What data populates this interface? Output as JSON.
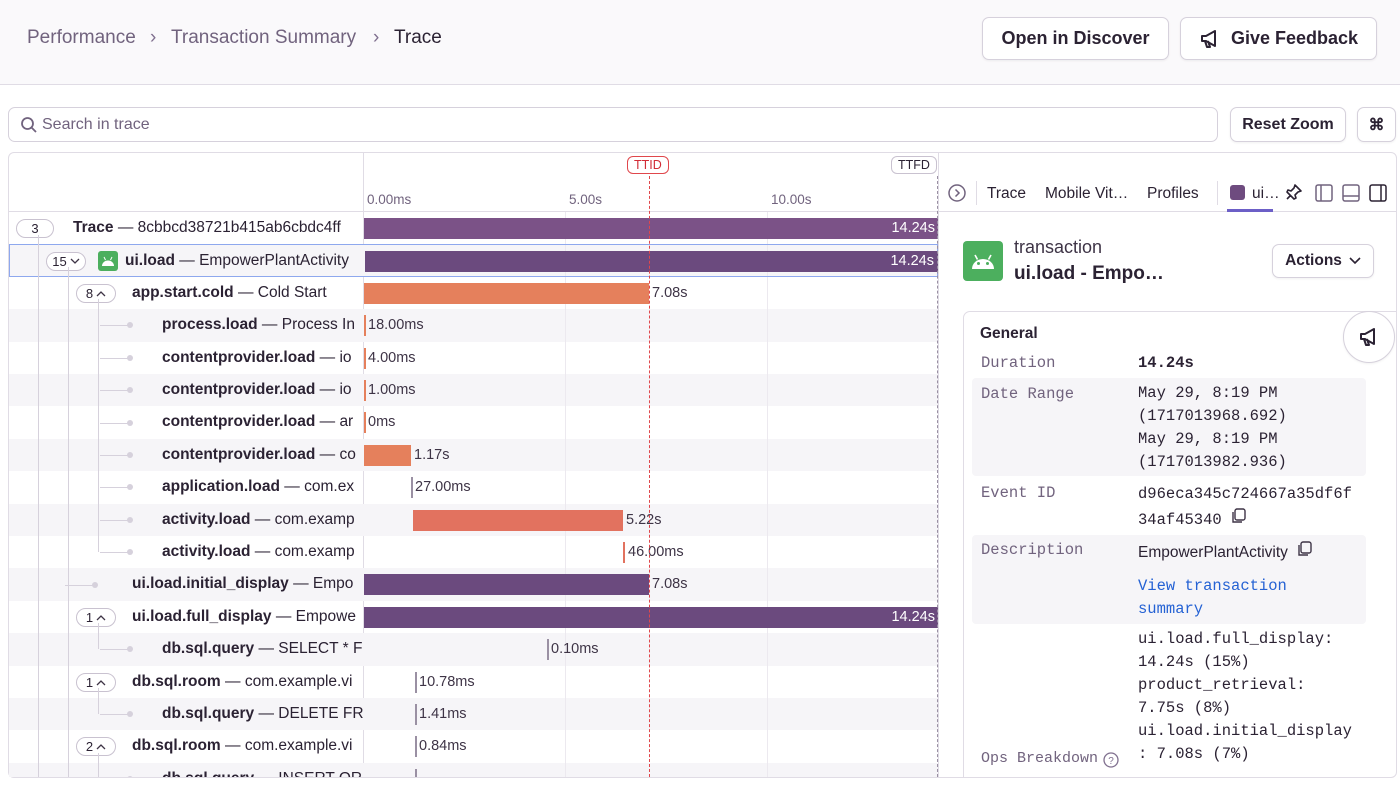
{
  "breadcrumbs": [
    "Performance",
    "Transaction Summary",
    "Trace"
  ],
  "header_buttons": {
    "open_discover": "Open in Discover",
    "feedback": "Give Feedback"
  },
  "toolbar": {
    "search_placeholder": "Search in trace",
    "reset_zoom": "Reset Zoom",
    "shortcut": "⌘"
  },
  "timeline": {
    "markers": {
      "ttid": "TTID",
      "ttfd": "TTFD"
    },
    "ticks": [
      "0.00ms",
      "5.00s",
      "10.00s"
    ]
  },
  "rows": [
    {
      "count": "3",
      "op": "Trace",
      "description": "8cbbcd38721b415ab6cbdc4ff",
      "duration": "14.24s"
    },
    {
      "count": "15",
      "op": "ui.load",
      "description": "EmpowerPlantActivity",
      "duration": "14.24s"
    },
    {
      "count": "8",
      "op": "app.start.cold",
      "description": "Cold Start",
      "duration": "7.08s"
    },
    {
      "op": "process.load",
      "description": "Process In",
      "duration": "18.00ms"
    },
    {
      "op": "contentprovider.load",
      "description": "io",
      "duration": "4.00ms"
    },
    {
      "op": "contentprovider.load",
      "description": "io",
      "duration": "1.00ms"
    },
    {
      "op": "contentprovider.load",
      "description": "ar",
      "duration": "0ms"
    },
    {
      "op": "contentprovider.load",
      "description": "co",
      "duration": "1.17s"
    },
    {
      "op": "application.load",
      "description": "com.ex",
      "duration": "27.00ms"
    },
    {
      "op": "activity.load",
      "description": "com.examp",
      "duration": "5.22s"
    },
    {
      "op": "activity.load",
      "description": "com.examp",
      "duration": "46.00ms"
    },
    {
      "op": "ui.load.initial_display",
      "description": "Empo",
      "duration": "7.08s"
    },
    {
      "count": "1",
      "op": "ui.load.full_display",
      "description": "Empowe",
      "duration": "14.24s"
    },
    {
      "op": "db.sql.query",
      "description": "SELECT * F",
      "duration": "0.10ms"
    },
    {
      "count": "1",
      "op": "db.sql.room",
      "description": "com.example.vi",
      "duration": "10.78ms"
    },
    {
      "op": "db.sql.query",
      "description": "DELETE FR",
      "duration": "1.41ms"
    },
    {
      "count": "2",
      "op": "db.sql.room",
      "description": "com.example.vi",
      "duration": "0.84ms"
    },
    {
      "op": "db.sql.query",
      "description": "INSERT OR"
    }
  ],
  "details": {
    "tabs": [
      "Trace",
      "Mobile Vit…",
      "Profiles",
      "ui…"
    ],
    "kind": "transaction",
    "name": "ui.load - Empo…",
    "actions": "Actions",
    "section": "General",
    "fields": {
      "duration": {
        "label": "Duration",
        "value": "14.24s"
      },
      "date_range": {
        "label": "Date Range",
        "lines": [
          "May 29, 8:19 PM",
          "(1717013968.692)",
          "May 29, 8:19 PM",
          "(1717013982.936)"
        ]
      },
      "event_id": {
        "label": "Event ID",
        "value": "d96eca345c724667a35df6f34af45340"
      },
      "description": {
        "label": "Description",
        "value": "EmpowerPlantActivity",
        "link": "View transaction summary"
      },
      "ops_breakdown": {
        "label": "Ops Breakdown",
        "lines": [
          "ui.load.full_display: 14.24s (15%)",
          "product_retrieval: 7.75s (8%)",
          "ui.load.initial_display: 7.08s (7%)"
        ]
      }
    }
  }
}
